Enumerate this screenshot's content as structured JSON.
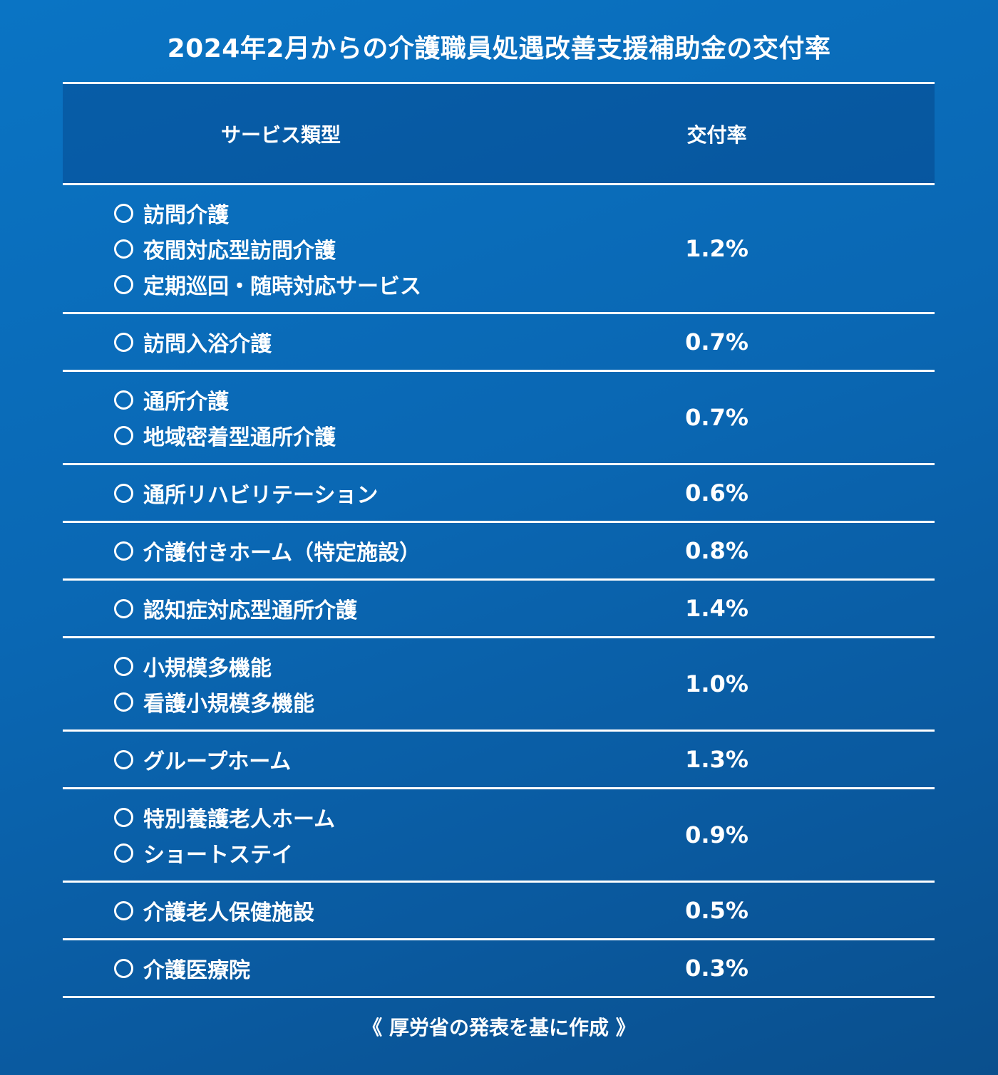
{
  "title": "2024年2月からの介護職員処遇改善支援補助金の交付率",
  "table": {
    "headers": {
      "service": "サービス類型",
      "rate": "交付率"
    },
    "rows": [
      {
        "services": [
          "訪問介護",
          "夜間対応型訪問介護",
          "定期巡回・随時対応サービス"
        ],
        "rate": "1.2%"
      },
      {
        "services": [
          "訪問入浴介護"
        ],
        "rate": "0.7%"
      },
      {
        "services": [
          "通所介護",
          "地域密着型通所介護"
        ],
        "rate": "0.7%"
      },
      {
        "services": [
          "通所リハビリテーション"
        ],
        "rate": "0.6%"
      },
      {
        "services": [
          "介護付きホーム（特定施設）"
        ],
        "rate": "0.8%"
      },
      {
        "services": [
          "認知症対応型通所介護"
        ],
        "rate": "1.4%"
      },
      {
        "services": [
          "小規模多機能",
          "看護小規模多機能"
        ],
        "rate": "1.0%"
      },
      {
        "services": [
          "グループホーム"
        ],
        "rate": "1.3%"
      },
      {
        "services": [
          "特別養護老人ホーム",
          "ショートステイ"
        ],
        "rate": "0.9%"
      },
      {
        "services": [
          "介護老人保健施設"
        ],
        "rate": "0.5%"
      },
      {
        "services": [
          "介護医療院"
        ],
        "rate": "0.3%"
      }
    ]
  },
  "footer": "《 厚労省の発表を基に作成 》",
  "colors": {
    "background_top": "#0a74c4",
    "background_bottom": "#0a4f8d",
    "text": "#ffffff",
    "rule": "#ffffff"
  }
}
